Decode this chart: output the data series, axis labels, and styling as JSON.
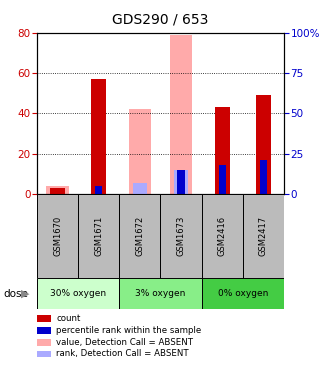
{
  "title": "GDS290 / 653",
  "samples": [
    "GSM1670",
    "GSM1671",
    "GSM1672",
    "GSM1673",
    "GSM2416",
    "GSM2417"
  ],
  "groups": [
    {
      "label": "30% oxygen",
      "color": "#ccffcc"
    },
    {
      "label": "3% oxygen",
      "color": "#88ee88"
    },
    {
      "label": "0% oxygen",
      "color": "#44cc44"
    }
  ],
  "count": [
    3,
    57,
    0,
    0,
    43,
    49
  ],
  "percentile_rank": [
    0,
    5,
    0,
    15,
    18,
    21
  ],
  "absent_value": [
    4,
    0,
    42,
    79,
    0,
    0
  ],
  "absent_rank": [
    0,
    0,
    7,
    15,
    0,
    0
  ],
  "left_ylim": [
    0,
    80
  ],
  "right_ylim": [
    0,
    100
  ],
  "left_yticks": [
    0,
    20,
    40,
    60,
    80
  ],
  "right_yticks": [
    0,
    25,
    50,
    75,
    100
  ],
  "right_yticklabels": [
    "0",
    "25",
    "50",
    "75",
    "100%"
  ],
  "count_color": "#cc0000",
  "rank_color": "#0000cc",
  "absent_value_color": "#ffaaaa",
  "absent_rank_color": "#aaaaff",
  "title_fontsize": 10,
  "axis_color_left": "#cc0000",
  "axis_color_right": "#0000cc",
  "sample_box_color": "#bbbbbb",
  "legend_items": [
    {
      "color": "#cc0000",
      "label": "count"
    },
    {
      "color": "#0000cc",
      "label": "percentile rank within the sample"
    },
    {
      "color": "#ffaaaa",
      "label": "value, Detection Call = ABSENT"
    },
    {
      "color": "#aaaaff",
      "label": "rank, Detection Call = ABSENT"
    }
  ]
}
